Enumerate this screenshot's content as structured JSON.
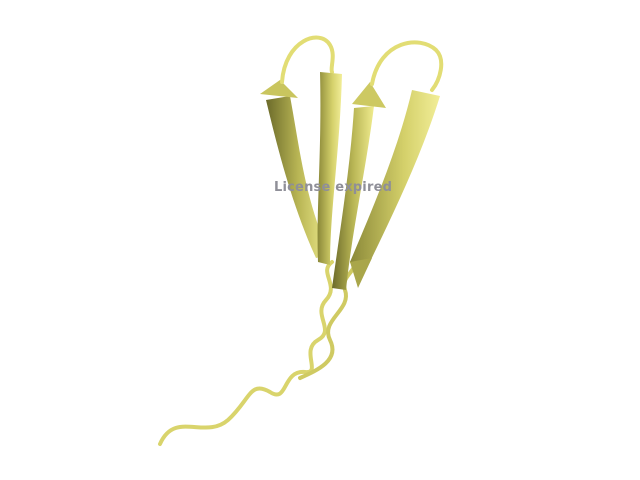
{
  "viewer": {
    "watermark": "License expired",
    "structure_color": "#e6e07a",
    "background_color": "#ffffff",
    "representation": "cartoon"
  }
}
